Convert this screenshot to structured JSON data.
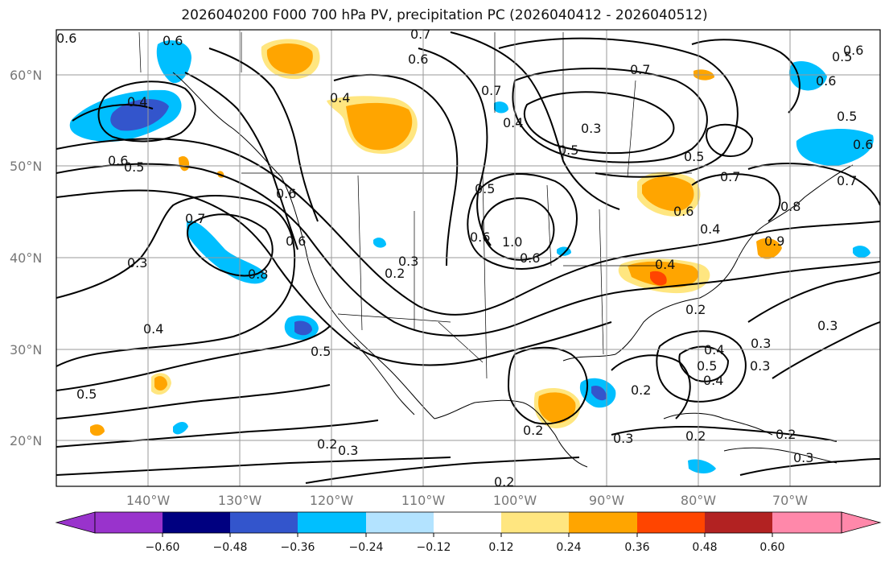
{
  "title": "2026040200 F000 700 hPa PV, precipitation PC (2026040412 - 2026040512)",
  "map": {
    "lat_labels": [
      "60°N",
      "50°N",
      "40°N",
      "30°N",
      "20°N"
    ],
    "lon_labels": [
      "140°W",
      "130°W",
      "120°W",
      "110°W",
      "100°W",
      "90°W",
      "80°W",
      "70°W"
    ],
    "contour_labels": [
      "0.6",
      "0.6",
      "0.7",
      "0.6",
      "0.5",
      "0.6",
      "0.6",
      "0.4",
      "0.4",
      "0.5",
      "0.6",
      "0.6",
      "0.7",
      "0.3",
      "0.8",
      "0.6",
      "0.7",
      "0.3",
      "0.4",
      "0.5",
      "0.5",
      "0.2",
      "0.3",
      "0.4",
      "0.5",
      "0.6",
      "0.6",
      "0.7",
      "0.7",
      "1.0",
      "0.6",
      "0.5",
      "0.4",
      "0.8",
      "0.7",
      "0.6",
      "0.5",
      "0.4",
      "0.3",
      "0.2",
      "0.2",
      "0.3",
      "0.2",
      "0.3",
      "0.2",
      "0.2",
      "0.3",
      "0.2",
      "0.3",
      "0.5",
      "0.4",
      "0.3",
      "0.2",
      "0.5",
      "0.9",
      "0.4"
    ]
  },
  "colorbar": {
    "ticks": [
      "−0.60",
      "−0.48",
      "−0.36",
      "−0.24",
      "−0.12",
      "0.12",
      "0.24",
      "0.36",
      "0.48",
      "0.60"
    ],
    "colors": [
      "#9933cc",
      "#000080",
      "#3355cc",
      "#00bfff",
      "#b3e3ff",
      "#ffffff",
      "#ffe680",
      "#ffa500",
      "#ff4500",
      "#b22222",
      "#ff88aa"
    ]
  }
}
